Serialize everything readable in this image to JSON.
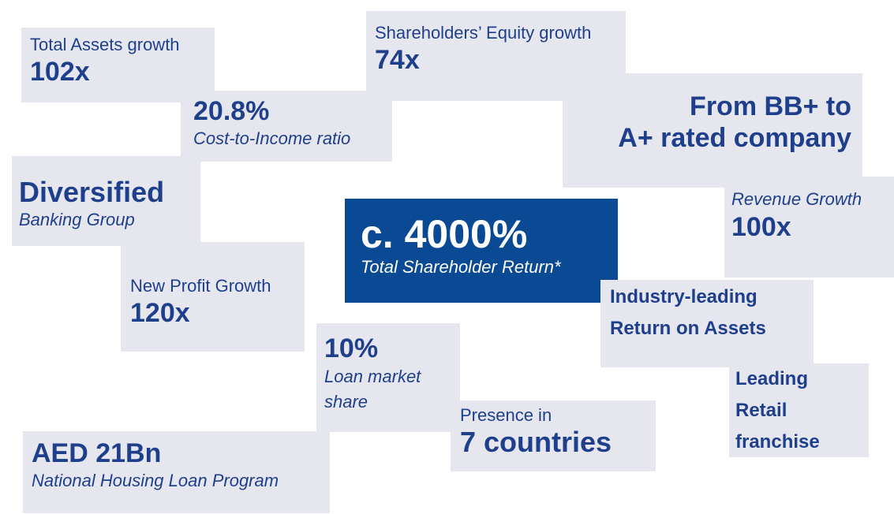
{
  "tiles": [
    {
      "lines": [
        "Total Assets growth",
        "102x"
      ]
    },
    {
      "lines": [
        "20.8%",
        "Cost-to-Income ratio"
      ]
    },
    {
      "lines": [
        "Shareholders’ Equity growth",
        "74x"
      ]
    },
    {
      "lines": [
        "From BB+ to",
        "A+ rated company"
      ]
    },
    {
      "lines": [
        "Diversified",
        "Banking Group"
      ]
    },
    {
      "lines": [
        "c. 4000%",
        "Total Shareholder Return*"
      ]
    },
    {
      "lines": [
        "Revenue Growth",
        "100x"
      ]
    },
    {
      "lines": [
        "New Profit Growth",
        "120x"
      ]
    },
    {
      "lines": [
        "Industry-leading",
        "Return on Assets"
      ]
    },
    {
      "lines": [
        "10%",
        "Loan market",
        "share"
      ]
    },
    {
      "lines": [
        "Leading",
        "Retail",
        "franchise"
      ]
    },
    {
      "lines": [
        "Presence in",
        "7 countries"
      ]
    },
    {
      "lines": [
        "AED 21Bn",
        "National Housing Loan Program"
      ]
    }
  ]
}
